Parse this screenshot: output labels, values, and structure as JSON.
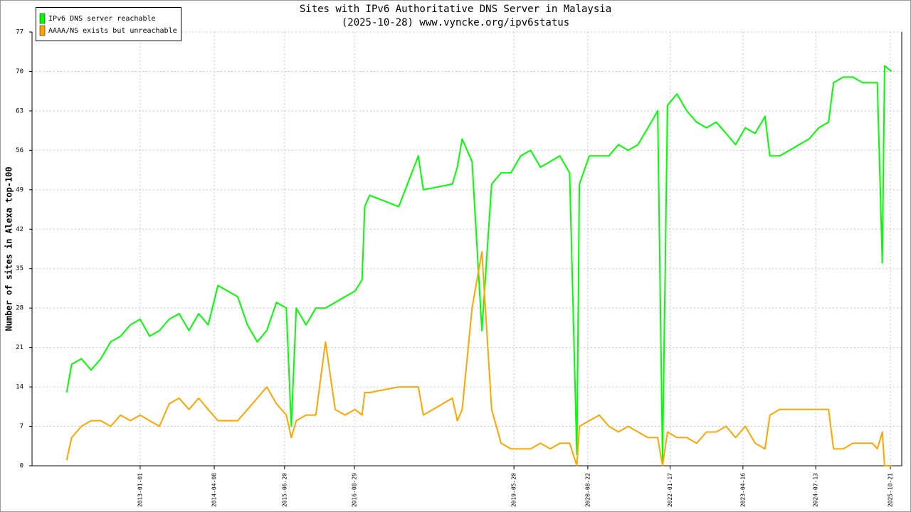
{
  "chart_data": {
    "type": "line",
    "title": "Sites with IPv6 Authoritative DNS Server in Malaysia",
    "subtitle": "(2025-10-28) www.vyncke.org/ipv6status",
    "y_label": "Number of sites in Alexa top-100",
    "ylim": [
      0,
      77
    ],
    "yticks": [
      0,
      7,
      14,
      21,
      28,
      35,
      42,
      49,
      56,
      63,
      70,
      77
    ],
    "xlim": [
      "2011-02-27",
      "2025-12-31"
    ],
    "xticks": [
      "2013-01-01",
      "2014-04-08",
      "2015-06-20",
      "2016-08-29",
      "2019-05-20",
      "2020-08-22",
      "2022-01-17",
      "2023-04-16",
      "2024-07-13",
      "2025-10-21"
    ],
    "grid": true,
    "legend": "top-left",
    "x": [
      "2011-10-01",
      "2011-11-01",
      "2012-01-01",
      "2012-03-01",
      "2012-05-01",
      "2012-07-01",
      "2012-09-01",
      "2012-11-01",
      "2013-01-01",
      "2013-03-01",
      "2013-05-01",
      "2013-07-01",
      "2013-09-01",
      "2013-11-01",
      "2014-01-01",
      "2014-03-01",
      "2014-05-01",
      "2014-07-01",
      "2014-09-01",
      "2014-11-01",
      "2015-01-01",
      "2015-03-01",
      "2015-05-01",
      "2015-07-01",
      "2015-08-01",
      "2015-09-01",
      "2015-11-01",
      "2016-01-01",
      "2016-03-01",
      "2016-05-01",
      "2016-07-01",
      "2016-09-01",
      "2016-10-15",
      "2016-11-01",
      "2016-12-01",
      "2017-06-01",
      "2017-10-01",
      "2017-11-01",
      "2018-05-01",
      "2018-06-01",
      "2018-07-01",
      "2018-09-01",
      "2018-11-01",
      "2019-01-01",
      "2019-03-01",
      "2019-05-01",
      "2019-07-01",
      "2019-09-01",
      "2019-11-01",
      "2020-01-01",
      "2020-03-01",
      "2020-05-01",
      "2020-06-15",
      "2020-07-01",
      "2020-09-01",
      "2020-11-01",
      "2021-01-01",
      "2021-03-01",
      "2021-05-01",
      "2021-07-01",
      "2021-09-01",
      "2021-11-01",
      "2021-12-01",
      "2022-01-01",
      "2022-03-01",
      "2022-05-01",
      "2022-07-01",
      "2022-09-01",
      "2022-11-01",
      "2023-01-01",
      "2023-03-01",
      "2023-05-01",
      "2023-07-01",
      "2023-09-01",
      "2023-10-01",
      "2023-12-01",
      "2024-02-01",
      "2024-04-01",
      "2024-06-01",
      "2024-08-01",
      "2024-10-01",
      "2024-11-01",
      "2025-01-01",
      "2025-03-01",
      "2025-05-01",
      "2025-07-01",
      "2025-08-01",
      "2025-09-01",
      "2025-09-15",
      "2025-10-28"
    ],
    "series": [
      {
        "name": "IPv6 DNS server reachable",
        "color": "#00ff00",
        "values": [
          13,
          18,
          19,
          17,
          19,
          22,
          23,
          25,
          26,
          23,
          24,
          26,
          27,
          24,
          27,
          25,
          32,
          31,
          30,
          25,
          22,
          24,
          29,
          28,
          7,
          28,
          25,
          28,
          28,
          29,
          30,
          31,
          33,
          46,
          48,
          46,
          55,
          49,
          50,
          53,
          58,
          54,
          24,
          50,
          52,
          52,
          55,
          56,
          53,
          54,
          55,
          52,
          2,
          50,
          55,
          55,
          55,
          57,
          56,
          57,
          60,
          63,
          1,
          64,
          66,
          63,
          61,
          60,
          61,
          59,
          57,
          60,
          59,
          62,
          55,
          55,
          56,
          57,
          58,
          60,
          61,
          68,
          69,
          69,
          68,
          68,
          68,
          36,
          71,
          70
        ]
      },
      {
        "name": "AAAA/NS exists but unreachable",
        "color": "#ffa500",
        "values": [
          1,
          5,
          7,
          8,
          8,
          7,
          9,
          8,
          9,
          8,
          7,
          11,
          12,
          10,
          12,
          10,
          8,
          8,
          8,
          10,
          12,
          14,
          11,
          9,
          5,
          8,
          9,
          9,
          22,
          10,
          9,
          10,
          9,
          13,
          13,
          14,
          14,
          9,
          12,
          8,
          10,
          28,
          38,
          10,
          4,
          3,
          3,
          3,
          4,
          3,
          4,
          4,
          0,
          7,
          8,
          9,
          7,
          6,
          7,
          6,
          5,
          5,
          0,
          6,
          5,
          5,
          4,
          6,
          6,
          7,
          5,
          7,
          4,
          3,
          9,
          10,
          10,
          10,
          10,
          10,
          10,
          3,
          3,
          4,
          4,
          4,
          3,
          6,
          0,
          0
        ]
      }
    ]
  }
}
